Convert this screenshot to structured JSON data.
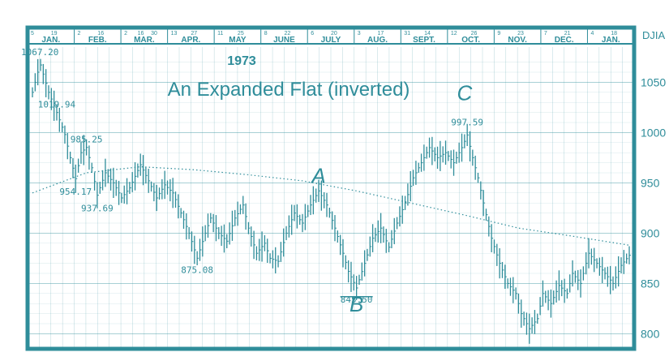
{
  "chart_data": {
    "type": "bar",
    "title": "An Expanded Flat (inverted)",
    "year": "1973",
    "axis_label": "DJIA",
    "ylim": [
      785,
      1085
    ],
    "yticks": [
      {
        "value": 800,
        "label": "800"
      },
      {
        "value": 850,
        "label": "850"
      },
      {
        "value": 900,
        "label": "900"
      },
      {
        "value": 950,
        "label": "950"
      },
      {
        "value": 1000,
        "label": "1000"
      },
      {
        "value": 1050,
        "label": "1050"
      }
    ],
    "months": [
      "JAN.",
      "FEB.",
      "MAR.",
      "APR.",
      "MAY",
      "JUNE",
      "JULY",
      "AUG.",
      "SEPT.",
      "OCT.",
      "NOV.",
      "DEC.",
      "JAN."
    ],
    "month_days": [
      [
        "5",
        "19"
      ],
      [
        "2",
        "16"
      ],
      [
        "2",
        "16",
        "30"
      ],
      [
        "13",
        "27"
      ],
      [
        "11",
        "25"
      ],
      [
        "8",
        "22"
      ],
      [
        "6",
        "20"
      ],
      [
        "3",
        "17"
      ],
      [
        "31",
        "14"
      ],
      [
        "12",
        "26"
      ],
      [
        "9",
        "23"
      ],
      [
        "7",
        "21"
      ],
      [
        "4",
        "18"
      ]
    ],
    "series": [
      {
        "type": "line",
        "values": [
          [
            0,
            1040
          ],
          [
            2,
            1060
          ],
          [
            3,
            1067.2
          ],
          [
            6,
            1040
          ],
          [
            9,
            1019.94
          ],
          [
            12,
            998
          ],
          [
            14,
            975
          ],
          [
            16,
            954.17
          ],
          [
            18,
            980
          ],
          [
            20,
            985.25
          ],
          [
            22,
            965
          ],
          [
            24,
            937.69
          ],
          [
            27,
            960
          ],
          [
            30,
            950
          ],
          [
            33,
            935
          ],
          [
            36,
            945
          ],
          [
            40,
            968
          ],
          [
            43,
            952
          ],
          [
            46,
            935
          ],
          [
            49,
            948
          ],
          [
            52,
            940
          ],
          [
            55,
            920
          ],
          [
            58,
            900
          ],
          [
            61,
            875.08
          ],
          [
            64,
            900
          ],
          [
            66,
            915
          ],
          [
            69,
            900
          ],
          [
            72,
            892
          ],
          [
            75,
            915
          ],
          [
            78,
            928
          ],
          [
            80,
            905
          ],
          [
            83,
            880
          ],
          [
            86,
            890
          ],
          [
            88,
            875
          ],
          [
            91,
            872
          ],
          [
            94,
            900
          ],
          [
            97,
            920
          ],
          [
            100,
            910
          ],
          [
            103,
            928
          ],
          [
            106,
            942
          ],
          [
            109,
            928
          ],
          [
            112,
            905
          ],
          [
            115,
            880
          ],
          [
            117,
            862
          ],
          [
            120,
            845.5
          ],
          [
            123,
            870
          ],
          [
            126,
            895
          ],
          [
            129,
            905
          ],
          [
            132,
            886
          ],
          [
            135,
            910
          ],
          [
            138,
            930
          ],
          [
            141,
            955
          ],
          [
            144,
            970
          ],
          [
            147,
            985
          ],
          [
            150,
            975
          ],
          [
            153,
            980
          ],
          [
            156,
            970
          ],
          [
            159,
            985
          ],
          [
            161,
            997.59
          ],
          [
            163,
            975
          ],
          [
            165,
            955
          ],
          [
            167,
            930
          ],
          [
            170,
            895
          ],
          [
            173,
            870
          ],
          [
            176,
            850
          ],
          [
            179,
            840
          ],
          [
            181,
            820
          ],
          [
            184,
            805
          ],
          [
            187,
            815
          ],
          [
            189,
            840
          ],
          [
            192,
            830
          ],
          [
            195,
            848
          ],
          [
            198,
            840
          ],
          [
            200,
            860
          ],
          [
            203,
            850
          ],
          [
            206,
            880
          ],
          [
            209,
            870
          ],
          [
            212,
            860
          ],
          [
            215,
            850
          ],
          [
            218,
            868
          ],
          [
            221,
            878
          ]
        ]
      }
    ],
    "moving_average": [
      [
        0,
        940
      ],
      [
        20,
        960
      ],
      [
        40,
        966
      ],
      [
        60,
        963
      ],
      [
        80,
        958
      ],
      [
        100,
        952
      ],
      [
        120,
        942
      ],
      [
        140,
        930
      ],
      [
        160,
        918
      ],
      [
        180,
        905
      ],
      [
        200,
        897
      ],
      [
        221,
        888
      ]
    ],
    "annotations": [
      {
        "text": "1067.20",
        "x": 3,
        "y": 1067.2
      },
      {
        "text": "1019.94",
        "x": 9,
        "y": 1019.94
      },
      {
        "text": "985.25",
        "x": 20,
        "y": 985.25
      },
      {
        "text": "954.17",
        "x": 16,
        "y": 954.17
      },
      {
        "text": "937.69",
        "x": 24,
        "y": 937.69
      },
      {
        "text": "875.08",
        "x": 61,
        "y": 875.08
      },
      {
        "text": "845.50",
        "x": 120,
        "y": 845.5
      },
      {
        "text": "997.59",
        "x": 161,
        "y": 997.59
      }
    ],
    "wave_labels": [
      {
        "text": "A",
        "x": 106,
        "y": 950
      },
      {
        "text": "B",
        "x": 120,
        "y": 822
      },
      {
        "text": "C",
        "x": 160,
        "y": 1032
      }
    ],
    "colors": {
      "ink": "#2f8d9a",
      "background": "#ffffff"
    }
  }
}
